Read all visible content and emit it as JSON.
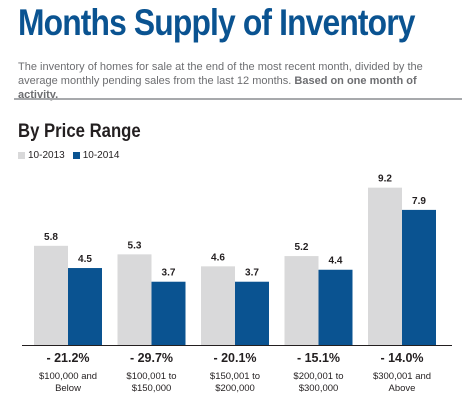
{
  "header": {
    "title": "Months Supply of Inventory",
    "subtitle": "The inventory of homes for sale at the end of the most recent month, divided by the average monthly pending sales from the last 12 months.",
    "subtitle_bold": "Based on one month of activity."
  },
  "section_title": "By Price Range",
  "colors": {
    "title": "#0a5391",
    "series_2013": "#d9d9da",
    "series_2014": "#0a5391"
  },
  "chart_data": {
    "type": "bar",
    "title": "By Price Range",
    "categories": [
      [
        "$100,000 and",
        "Below"
      ],
      [
        "$100,001 to",
        "$150,000"
      ],
      [
        "$150,001 to",
        "$200,000"
      ],
      [
        "$200,001 to",
        "$300,000"
      ],
      [
        "$300,001 and",
        "Above"
      ]
    ],
    "series": [
      {
        "name": "10-2013",
        "color": "#d9d9da",
        "values": [
          5.8,
          5.3,
          4.6,
          5.2,
          9.2
        ],
        "labels": [
          "5.8",
          "5.3",
          "4.6",
          "5.2",
          "9.2"
        ]
      },
      {
        "name": "10-2014",
        "color": "#0a5391",
        "values": [
          4.5,
          3.7,
          3.7,
          4.4,
          7.9
        ],
        "labels": [
          "4.5",
          "3.7",
          "3.7",
          "4.4",
          "7.9"
        ]
      }
    ],
    "changes": [
      "- 21.2%",
      "- 29.7%",
      "- 20.1%",
      "- 15.1%",
      "- 14.0%"
    ],
    "ylim": [
      0,
      10.7
    ],
    "legend": "top-left"
  }
}
